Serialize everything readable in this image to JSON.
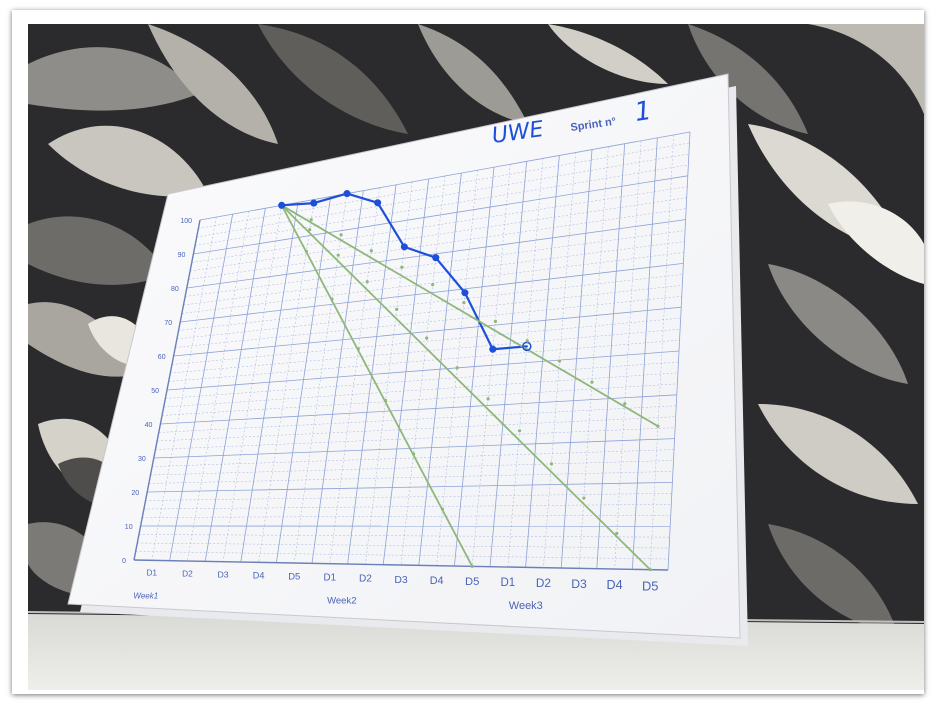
{
  "board": {
    "team_name": "UWE",
    "sprint_label": "Sprint n°",
    "sprint_number": "1"
  },
  "chart_data": {
    "type": "line",
    "y_ticks": [
      "0",
      "10",
      "20",
      "30",
      "40",
      "50",
      "60",
      "70",
      "80",
      "90",
      "100"
    ],
    "x_ticks": [
      "D1",
      "D2",
      "D3",
      "D4",
      "D5",
      "D1",
      "D2",
      "D3",
      "D4",
      "D5",
      "D1",
      "D2",
      "D3",
      "D4",
      "D5"
    ],
    "week_labels": [
      "Week1",
      "Week2",
      "Week3"
    ],
    "ylim": [
      0,
      100
    ],
    "series": [
      {
        "day": [
          3,
          4,
          5,
          6,
          7,
          8,
          9,
          10,
          11
        ],
        "values": [
          100,
          99,
          100,
          96,
          83,
          79,
          69,
          54,
          54
        ]
      },
      {
        "day": [
          3,
          10
        ],
        "values": [
          100,
          0
        ]
      },
      {
        "day": [
          3,
          15
        ],
        "values": [
          100,
          0
        ]
      },
      {
        "day": [
          3,
          15
        ],
        "values": [
          100,
          33
        ]
      }
    ]
  },
  "colors": {
    "actual": "#1e4fd8",
    "ideal": "#8fb77a",
    "grid": "#8da2d6",
    "axis_text": "#4a63b8",
    "wall_dark": "#2b2b2d"
  }
}
